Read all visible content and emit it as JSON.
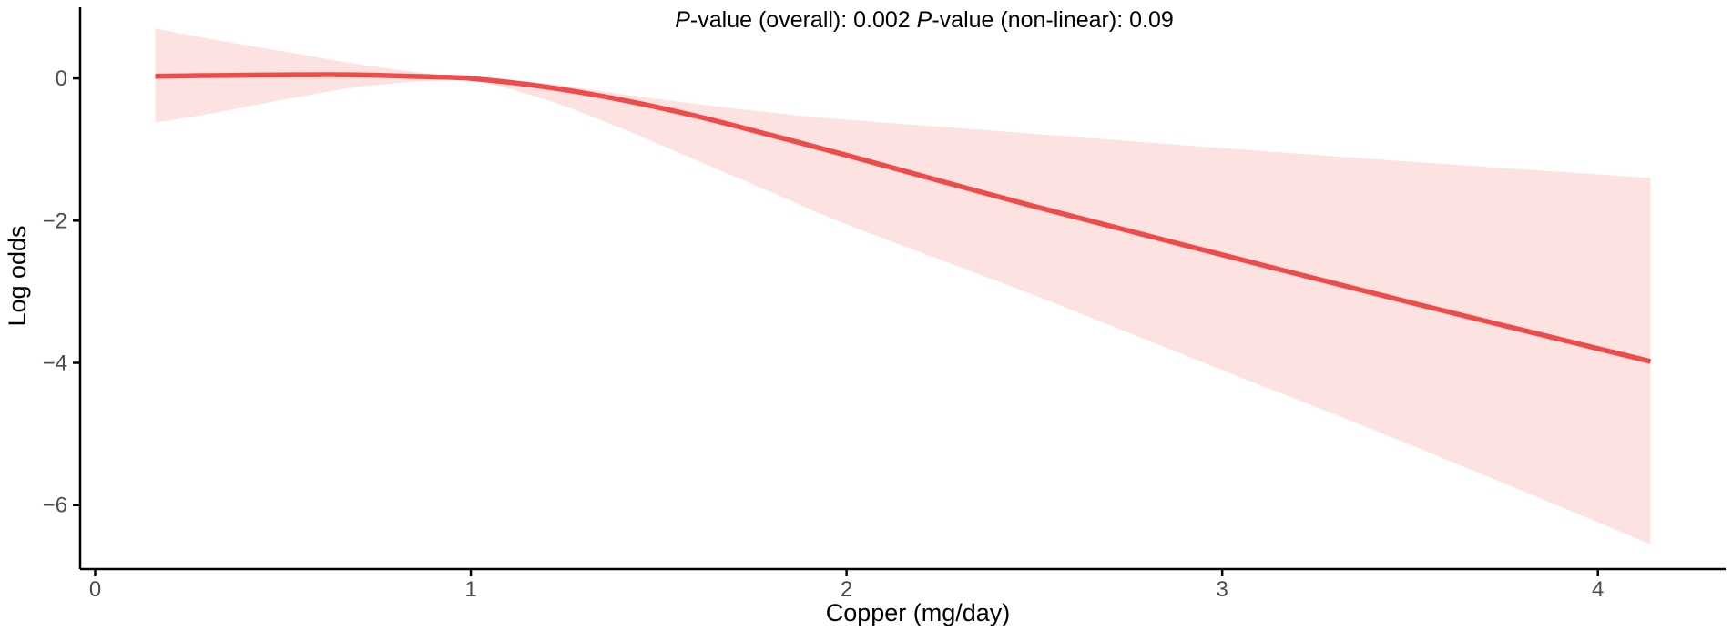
{
  "chart_data": {
    "type": "line",
    "title": "",
    "xlabel": "Copper (mg/day)",
    "ylabel": "Log odds",
    "xlim": [
      -0.04,
      4.34
    ],
    "ylim": [
      -6.9,
      1.0
    ],
    "x_ticks": [
      0,
      1,
      2,
      3,
      4
    ],
    "x_tick_labels": [
      "0",
      "1",
      "2",
      "3",
      "4"
    ],
    "y_ticks": [
      0,
      -2,
      -4,
      -6
    ],
    "y_tick_labels": [
      "0",
      "−2",
      "−4",
      "−6"
    ],
    "grid": false,
    "legend": "none",
    "annotation": {
      "p1_label": "P",
      "p1_text": "-value (overall): 0.002 ",
      "p2_label": "P",
      "p2_text": "-value (non-linear): 0.09"
    },
    "colors": {
      "line": "#ef4b4b",
      "band": "#fde2e2",
      "axis": "#000000"
    },
    "series": [
      {
        "x": [
          0.16,
          0.3,
          0.5,
          0.7,
          0.9,
          1.0,
          1.2,
          1.4,
          1.6,
          1.8,
          2.0,
          2.5,
          3.0,
          3.5,
          4.14
        ],
        "y": [
          0.03,
          0.04,
          0.05,
          0.05,
          0.02,
          0.0,
          -0.12,
          -0.3,
          -0.53,
          -0.8,
          -1.08,
          -1.8,
          -2.48,
          -3.15,
          -3.98
        ],
        "lower": [
          -0.62,
          -0.5,
          -0.3,
          -0.12,
          -0.03,
          -0.02,
          -0.3,
          -0.7,
          -1.15,
          -1.6,
          -2.05,
          -3.05,
          -4.1,
          -5.15,
          -6.55
        ],
        "upper": [
          0.7,
          0.56,
          0.38,
          0.2,
          0.06,
          0.02,
          -0.07,
          -0.22,
          -0.36,
          -0.48,
          -0.58,
          -0.78,
          -0.98,
          -1.17,
          -1.4
        ]
      }
    ]
  }
}
